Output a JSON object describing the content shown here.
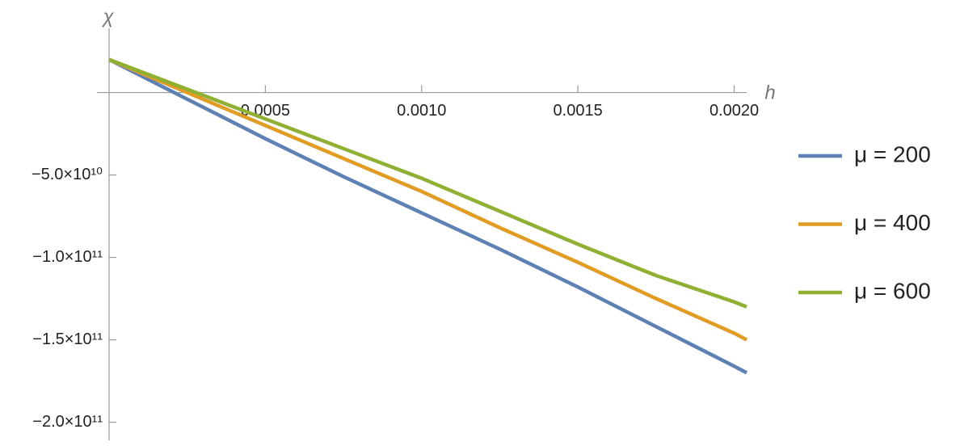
{
  "chart_data": {
    "type": "line",
    "x_label": "h",
    "y_label": "χ",
    "x": [
      0,
      0.00025,
      0.0005,
      0.00075,
      0.001,
      0.00125,
      0.0015,
      0.00175,
      0.002,
      0.00204
    ],
    "series": [
      {
        "name": "μ = 200",
        "color": "#5e81b5",
        "values": [
          20000000000.0,
          -4000000000.0,
          -28000000000.0,
          -51000000000.0,
          -73000000000.0,
          -95000000000.0,
          -118000000000.0,
          -142000000000.0,
          -166000000000.0,
          -170000000000.0
        ]
      },
      {
        "name": "μ = 400",
        "color": "#e19c24",
        "values": [
          20000000000.0,
          0,
          -20000000000.0,
          -40000000000.0,
          -60000000000.0,
          -82000000000.0,
          -103000000000.0,
          -125000000000.0,
          -146000000000.0,
          -150000000000.0
        ]
      },
      {
        "name": "μ = 600",
        "color": "#8fb032",
        "values": [
          20000000000.0,
          2000000000.0,
          -16000000000.0,
          -34000000000.0,
          -52000000000.0,
          -72000000000.0,
          -92000000000.0,
          -111000000000.0,
          -127000000000.0,
          -130000000000.0
        ]
      }
    ],
    "xlim": [
      0,
      0.00204
    ],
    "ylim": [
      -211000000000.0,
      39000000000.0
    ],
    "xticks": [
      {
        "value": 0.0005,
        "label": "0.0005"
      },
      {
        "value": 0.001,
        "label": "0.0010"
      },
      {
        "value": 0.0015,
        "label": "0.0015"
      },
      {
        "value": 0.002,
        "label": "0.0020"
      }
    ],
    "yticks": [
      {
        "value": -50000000000.0,
        "label": "−5.0×10¹⁰"
      },
      {
        "value": -100000000000.0,
        "label": "−1.0×10¹¹"
      },
      {
        "value": -150000000000.0,
        "label": "−1.5×10¹¹"
      },
      {
        "value": -200000000000.0,
        "label": "−2.0×10¹¹"
      }
    ],
    "legend": "right"
  }
}
